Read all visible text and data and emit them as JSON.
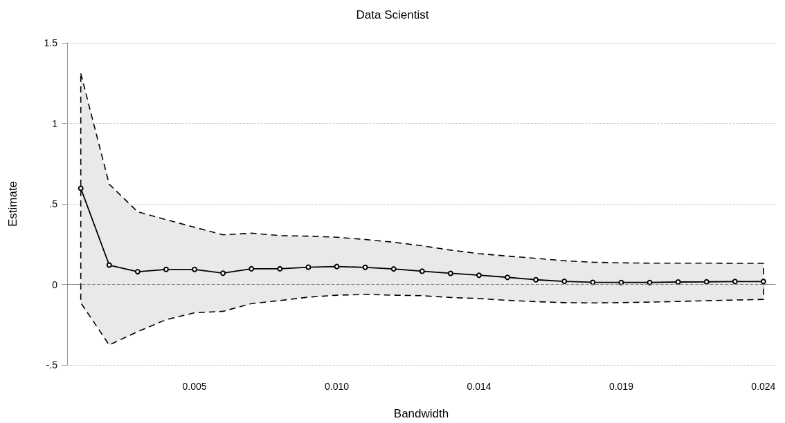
{
  "chart_data": {
    "type": "line",
    "title": "Data Scientist",
    "xlabel": "Bandwidth",
    "ylabel": "Estimate",
    "x": [
      0.00096,
      0.00192,
      0.00288,
      0.00384,
      0.0048,
      0.00576,
      0.00672,
      0.00768,
      0.00864,
      0.0096,
      0.01056,
      0.01152,
      0.01248,
      0.01344,
      0.0144,
      0.01536,
      0.01632,
      0.01728,
      0.01824,
      0.0192,
      0.02016,
      0.02112,
      0.02208,
      0.02304,
      0.024
    ],
    "series": [
      {
        "color": "#000000",
        "values": [
          0.597,
          0.12,
          0.079,
          0.093,
          0.093,
          0.07,
          0.097,
          0.097,
          0.107,
          0.111,
          0.106,
          0.096,
          0.082,
          0.069,
          0.057,
          0.044,
          0.029,
          0.019,
          0.013,
          0.012,
          0.012,
          0.015,
          0.016,
          0.018,
          0.018
        ],
        "upper": [
          1.31,
          0.622,
          0.451,
          0.402,
          0.355,
          0.308,
          0.318,
          0.303,
          0.3,
          0.293,
          0.279,
          0.262,
          0.24,
          0.213,
          0.191,
          0.176,
          0.162,
          0.147,
          0.138,
          0.134,
          0.132,
          0.132,
          0.132,
          0.131,
          0.131
        ],
        "lower": [
          -0.114,
          -0.376,
          -0.293,
          -0.219,
          -0.176,
          -0.167,
          -0.119,
          -0.1,
          -0.079,
          -0.067,
          -0.062,
          -0.067,
          -0.07,
          -0.081,
          -0.088,
          -0.099,
          -0.107,
          -0.113,
          -0.115,
          -0.113,
          -0.11,
          -0.106,
          -0.101,
          -0.097,
          -0.093
        ]
      }
    ],
    "xlim": [
      0.0005,
      0.0244
    ],
    "xticks": [
      {
        "value": 0.0048,
        "label": "0.005"
      },
      {
        "value": 0.0096,
        "label": "0.010"
      },
      {
        "value": 0.0144,
        "label": "0.014"
      },
      {
        "value": 0.0192,
        "label": "0.019"
      },
      {
        "value": 0.024,
        "label": "0.024"
      }
    ],
    "ylim": [
      -0.5,
      1.5
    ],
    "yticks": [
      {
        "value": -0.5,
        "label": "-.5"
      },
      0,
      {
        "value": 0.5,
        "label": ".5"
      },
      1,
      1.5
    ],
    "ref_lines": [
      {
        "axis": "y",
        "value": 0,
        "color": "#808080",
        "line_style": "dashed"
      }
    ],
    "grid": "y",
    "marker": "circle",
    "line_style": "solid"
  }
}
